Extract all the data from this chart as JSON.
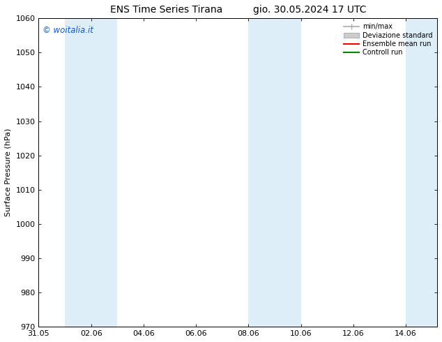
{
  "title_left": "ENS Time Series Tirana",
  "title_right": "gio. 30.05.2024 17 UTC",
  "ylabel": "Surface Pressure (hPa)",
  "ylim": [
    970,
    1060
  ],
  "yticks": [
    970,
    980,
    990,
    1000,
    1010,
    1020,
    1030,
    1040,
    1050,
    1060
  ],
  "xtick_labels": [
    "31.05",
    "02.06",
    "04.06",
    "06.06",
    "08.06",
    "10.06",
    "12.06",
    "14.06"
  ],
  "xtick_positions": [
    0,
    2,
    4,
    6,
    8,
    10,
    12,
    14
  ],
  "xlim": [
    0,
    15.2
  ],
  "shaded_bands": [
    {
      "x_start": 1,
      "x_end": 3,
      "color": "#ddeef8"
    },
    {
      "x_start": 8,
      "x_end": 9,
      "color": "#ddeef8"
    },
    {
      "x_start": 9,
      "x_end": 10,
      "color": "#ddeef8"
    },
    {
      "x_start": 14,
      "x_end": 15.2,
      "color": "#ddeef8"
    }
  ],
  "watermark": "© woitalia.it",
  "watermark_color": "#1155cc",
  "legend_labels": [
    "min/max",
    "Deviazione standard",
    "Ensemble mean run",
    "Controll run"
  ],
  "background_color": "#ffffff",
  "plot_bg_color": "#ffffff",
  "font_size": 8,
  "title_font_size": 10
}
